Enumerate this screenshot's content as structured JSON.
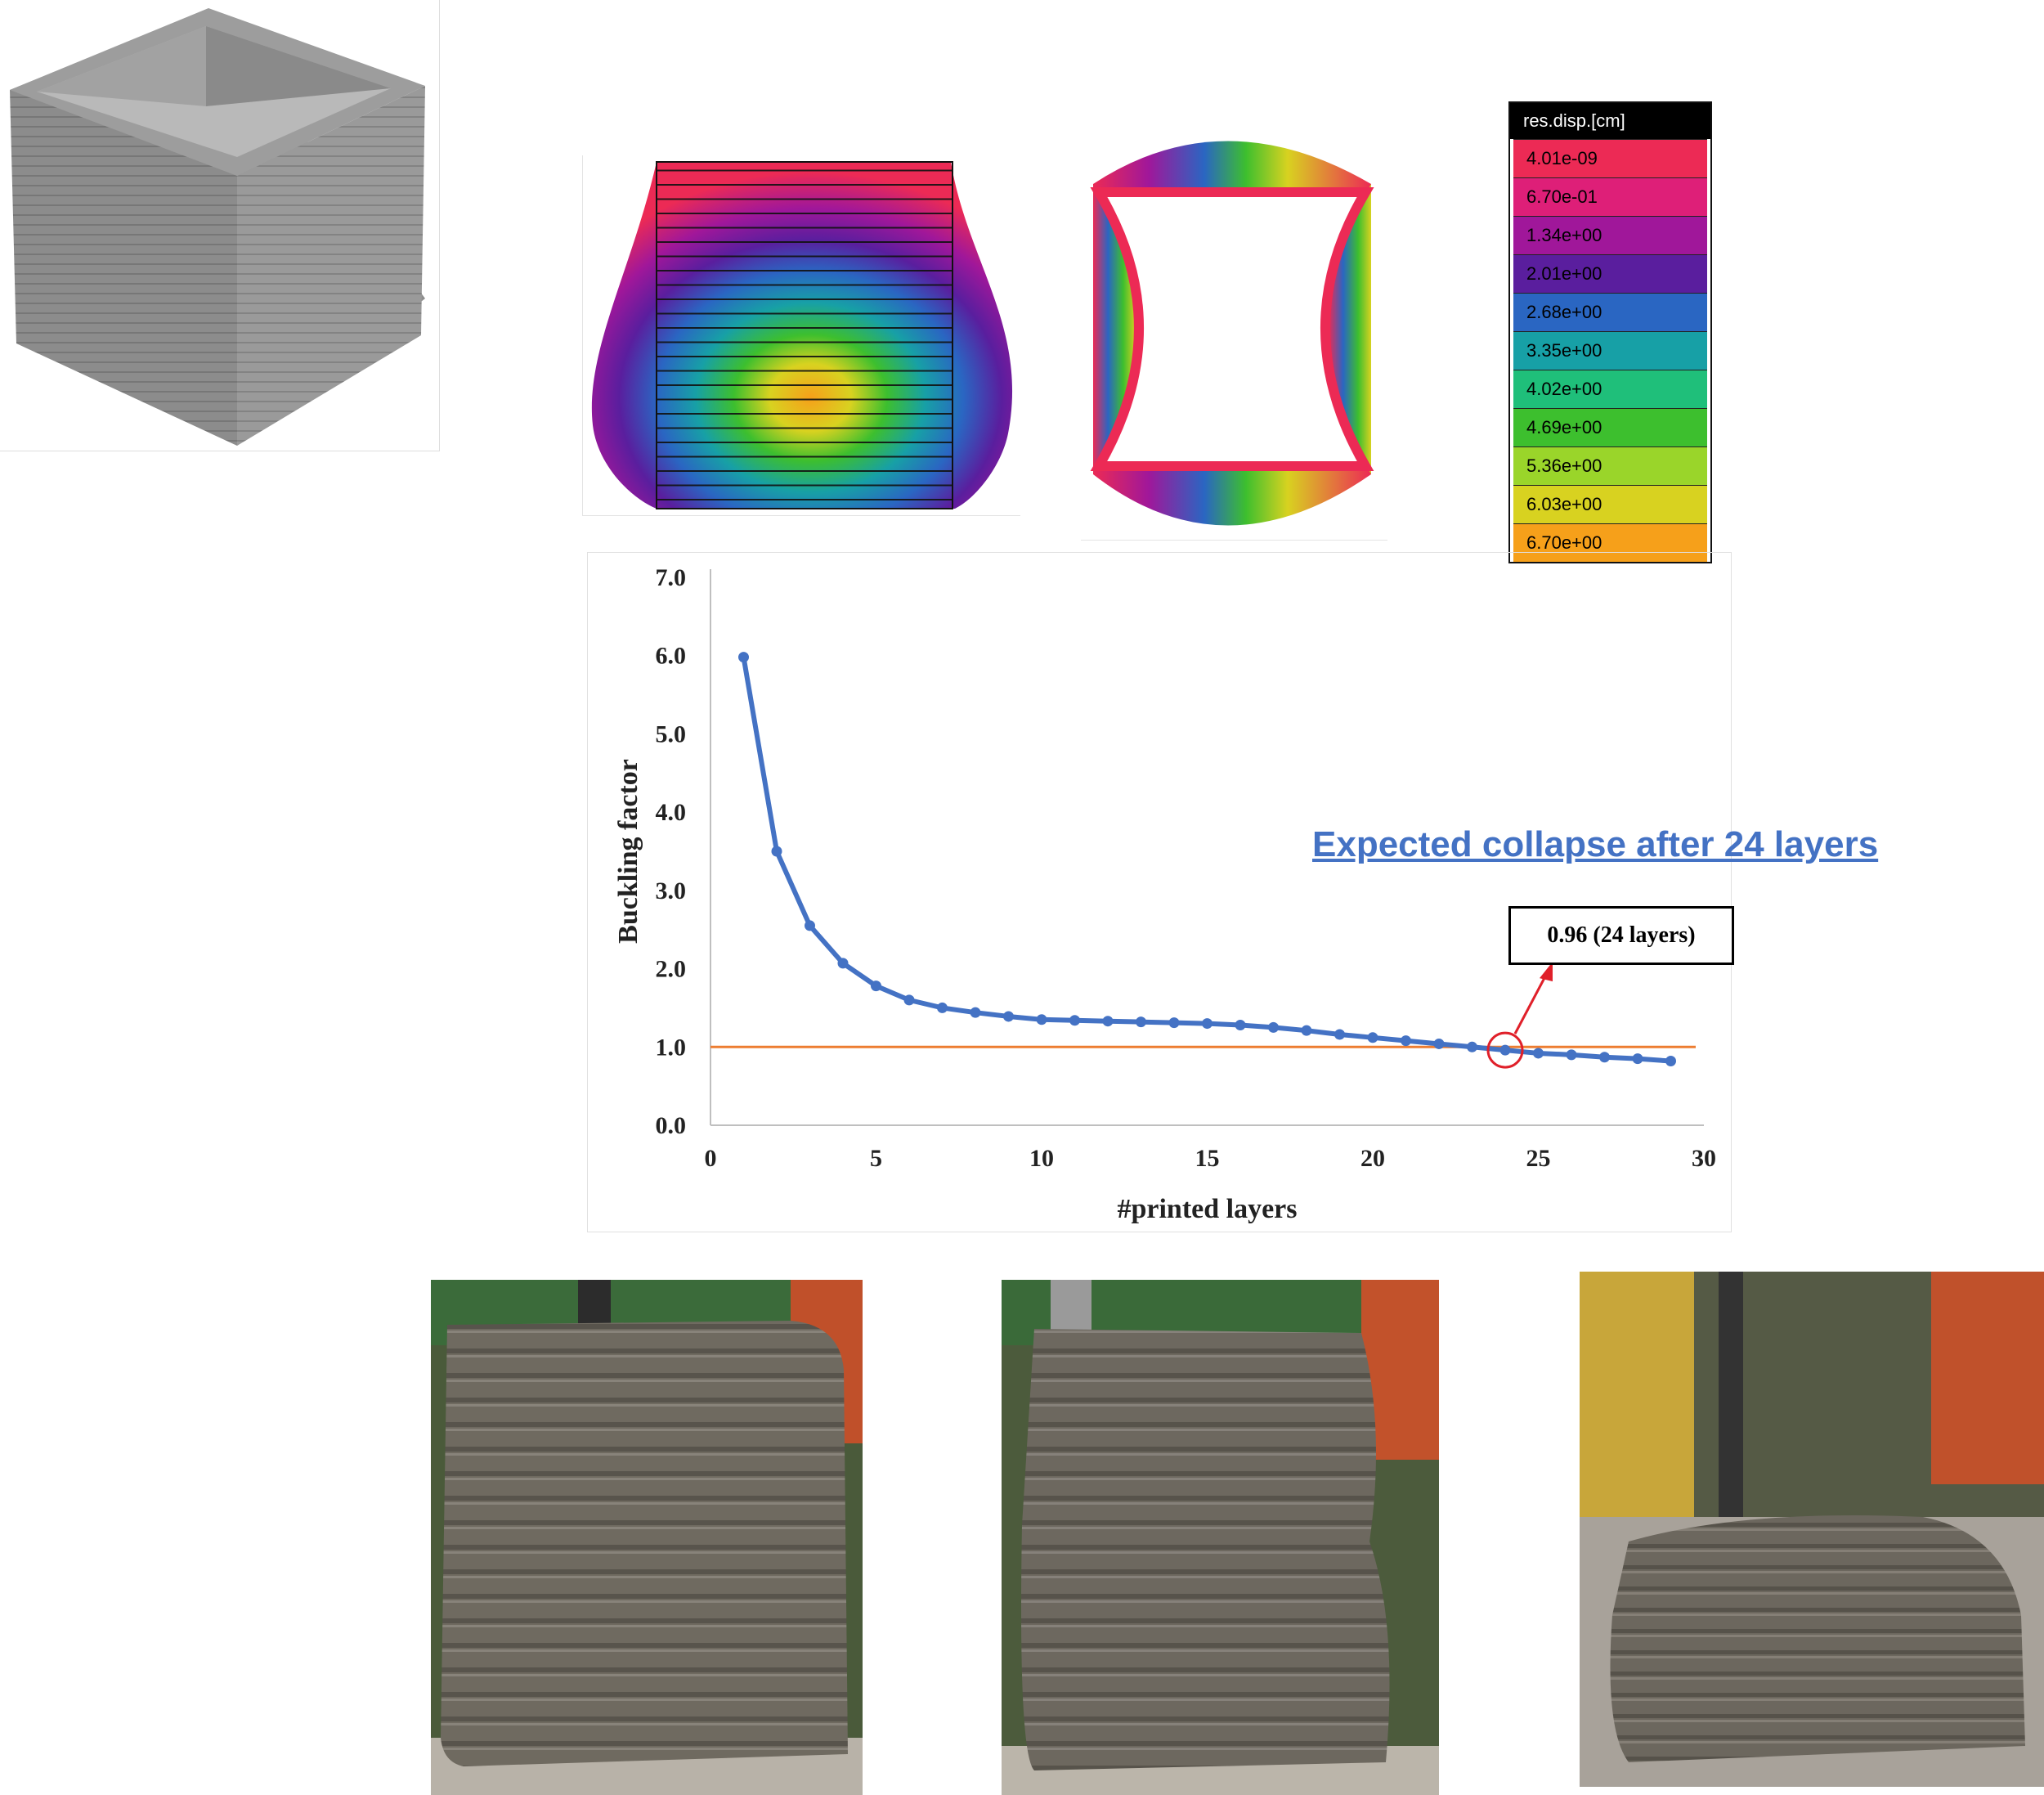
{
  "legend": {
    "title": "res.disp.[cm]",
    "items": [
      {
        "label": "4.01e-09",
        "color": "#EC2A55"
      },
      {
        "label": "6.70e-01",
        "color": "#DE1F78"
      },
      {
        "label": "1.34e+00",
        "color": "#A0179A"
      },
      {
        "label": "2.01e+00",
        "color": "#5A1E9E"
      },
      {
        "label": "2.68e+00",
        "color": "#2A66C2"
      },
      {
        "label": "3.35e+00",
        "color": "#17A0A6"
      },
      {
        "label": "4.02e+00",
        "color": "#1FBF7A"
      },
      {
        "label": "4.69e+00",
        "color": "#3DBF2E"
      },
      {
        "label": "5.36e+00",
        "color": "#9AD52A"
      },
      {
        "label": "6.03e+00",
        "color": "#D8D220"
      },
      {
        "label": "6.70e+00",
        "color": "#F6A01A"
      }
    ]
  },
  "annotation": {
    "text": "Expected collapse after 24 layers",
    "callout": "0.96 (24 layers)"
  },
  "chart_data": {
    "type": "line",
    "title": "",
    "xlabel": "#printed layers",
    "ylabel": "Buckling factor",
    "xlim": [
      0,
      30
    ],
    "ylim": [
      0,
      7
    ],
    "xticks": [
      "0",
      "5",
      "10",
      "15",
      "20",
      "25",
      "30"
    ],
    "yticks": [
      "0.0",
      "1.0",
      "2.0",
      "3.0",
      "4.0",
      "5.0",
      "6.0",
      "7.0"
    ],
    "grid": false,
    "series": [
      {
        "color": "#4472C4",
        "x": [
          1,
          2,
          3,
          4,
          5,
          6,
          7,
          8,
          9,
          10,
          11,
          12,
          13,
          14,
          15,
          16,
          17,
          18,
          19,
          20,
          21,
          22,
          23,
          24,
          25,
          26,
          27,
          28,
          29
        ],
        "values": [
          5.98,
          3.5,
          2.55,
          2.07,
          1.78,
          1.6,
          1.5,
          1.44,
          1.39,
          1.35,
          1.34,
          1.33,
          1.32,
          1.31,
          1.3,
          1.28,
          1.25,
          1.21,
          1.16,
          1.12,
          1.08,
          1.04,
          1.0,
          0.96,
          0.92,
          0.9,
          0.87,
          0.85,
          0.82
        ]
      }
    ],
    "reference_line": {
      "y": 1.0,
      "color": "#ED7D31"
    },
    "highlight": {
      "x": 24,
      "y": 0.96,
      "color": "#E0202A"
    }
  }
}
